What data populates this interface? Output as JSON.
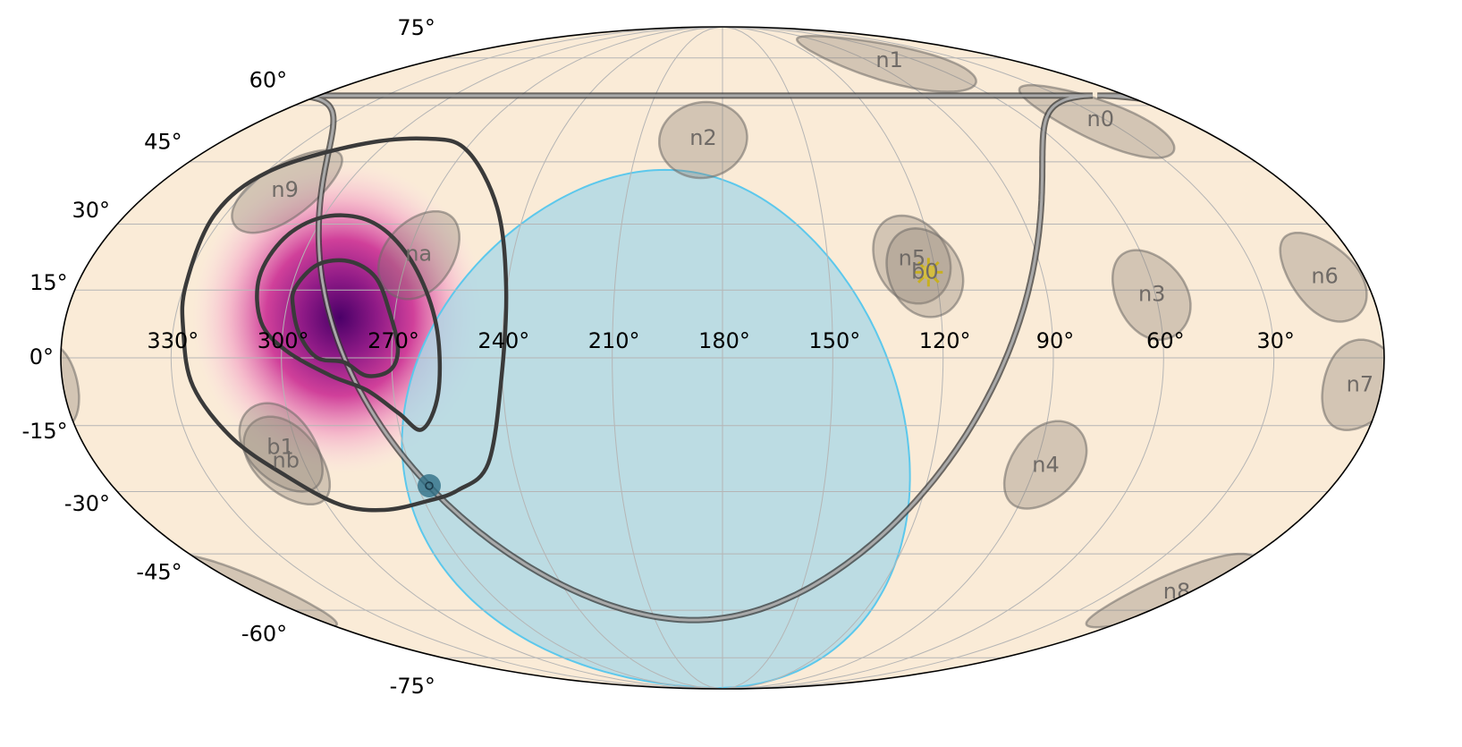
{
  "map": {
    "projection": "mollweide",
    "lon_ticks": [
      {
        "value": 330,
        "label": "330°"
      },
      {
        "value": 300,
        "label": "300°"
      },
      {
        "value": 270,
        "label": "270°"
      },
      {
        "value": 240,
        "label": "240°"
      },
      {
        "value": 210,
        "label": "210°"
      },
      {
        "value": 180,
        "label": "180°"
      },
      {
        "value": 150,
        "label": "150°"
      },
      {
        "value": 120,
        "label": "120°"
      },
      {
        "value": 90,
        "label": "90°"
      },
      {
        "value": 60,
        "label": "60°"
      },
      {
        "value": 30,
        "label": "30°"
      }
    ],
    "lat_ticks": [
      {
        "value": 75,
        "label": "75°"
      },
      {
        "value": 60,
        "label": "60°"
      },
      {
        "value": 45,
        "label": "45°"
      },
      {
        "value": 30,
        "label": "30°"
      },
      {
        "value": 15,
        "label": "15°"
      },
      {
        "value": 0,
        "label": "0°"
      },
      {
        "value": -15,
        "label": "-15°"
      },
      {
        "value": -30,
        "label": "-30°"
      },
      {
        "value": -45,
        "label": "-45°"
      },
      {
        "value": -60,
        "label": "-60°"
      },
      {
        "value": -75,
        "label": "-75°"
      }
    ],
    "detectors": [
      {
        "label": "n0",
        "ra": 32,
        "dec": 56
      },
      {
        "label": "n1",
        "ra": 77,
        "dec": 74
      },
      {
        "label": "n2",
        "ra": 187,
        "dec": 51
      },
      {
        "label": "n3",
        "ra": 61,
        "dec": 14
      },
      {
        "label": "n4",
        "ra": 87,
        "dec": -24
      },
      {
        "label": "n5",
        "ra": 126,
        "dec": 22
      },
      {
        "label": "n6",
        "ra": 11,
        "dec": 18
      },
      {
        "label": "n7",
        "ra": 6,
        "dec": -6
      },
      {
        "label": "n8",
        "ra": 5,
        "dec": -55
      },
      {
        "label": "n9",
        "ra": 318,
        "dec": 38
      },
      {
        "label": "na",
        "ra": 267,
        "dec": 23
      },
      {
        "label": "nb",
        "ra": 305,
        "dec": -23
      },
      {
        "label": "b0",
        "ra": 123,
        "dec": 19
      },
      {
        "label": "b1",
        "ra": 305,
        "dec": -20
      }
    ],
    "sun": {
      "ra": 122,
      "dec": 19
    },
    "earth_occultation": {
      "ra": 199,
      "dec": -23,
      "radius": 66
    }
  }
}
